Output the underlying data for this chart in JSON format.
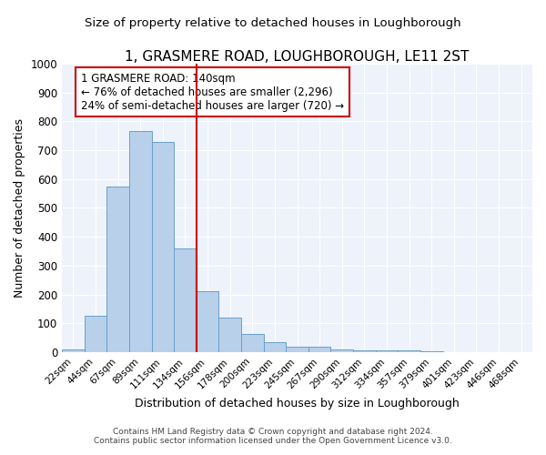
{
  "title": "1, GRASMERE ROAD, LOUGHBOROUGH, LE11 2ST",
  "subtitle": "Size of property relative to detached houses in Loughborough",
  "xlabel": "Distribution of detached houses by size in Loughborough",
  "ylabel": "Number of detached properties",
  "bin_labels": [
    "22sqm",
    "44sqm",
    "67sqm",
    "89sqm",
    "111sqm",
    "134sqm",
    "156sqm",
    "178sqm",
    "200sqm",
    "223sqm",
    "245sqm",
    "267sqm",
    "290sqm",
    "312sqm",
    "334sqm",
    "357sqm",
    "379sqm",
    "401sqm",
    "423sqm",
    "446sqm",
    "468sqm"
  ],
  "bar_heights": [
    10,
    127,
    575,
    767,
    730,
    360,
    210,
    120,
    62,
    35,
    20,
    20,
    10,
    7,
    7,
    7,
    2,
    0,
    0,
    0,
    0
  ],
  "bar_color": "#b8d0ea",
  "bar_edge_color": "#6a9fcb",
  "vline_x": 5.5,
  "vline_color": "#cc0000",
  "annotation_line1": "1 GRASMERE ROAD: 140sqm",
  "annotation_line2": "← 76% of detached houses are smaller (2,296)",
  "annotation_line3": "24% of semi-detached houses are larger (720) →",
  "annotation_box_color": "#cc0000",
  "ylim": [
    0,
    1000
  ],
  "yticks": [
    0,
    100,
    200,
    300,
    400,
    500,
    600,
    700,
    800,
    900,
    1000
  ],
  "footnote1": "Contains HM Land Registry data © Crown copyright and database right 2024.",
  "footnote2": "Contains public sector information licensed under the Open Government Licence v3.0.",
  "bg_color": "#eef2fa",
  "grid_color": "#ffffff",
  "fig_bg_color": "#ffffff",
  "title_fontsize": 11,
  "subtitle_fontsize": 9.5,
  "annotation_fontsize": 8.5,
  "xlabel_fontsize": 9,
  "ylabel_fontsize": 9
}
